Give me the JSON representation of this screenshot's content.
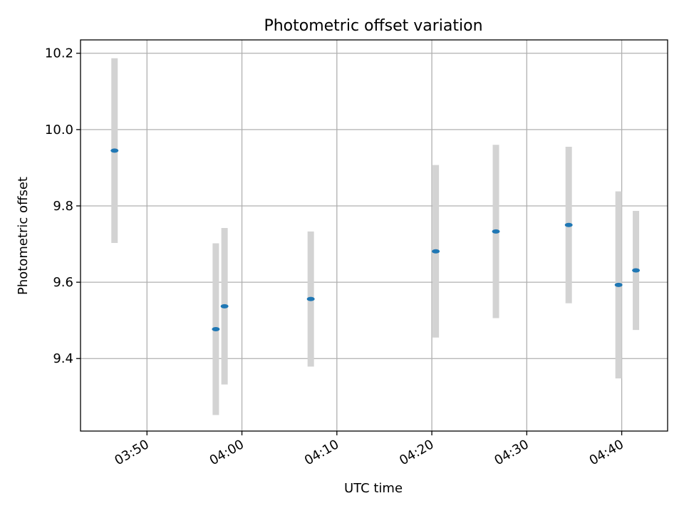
{
  "chart_data": {
    "type": "scatter",
    "title": "Photometric offset variation",
    "xlabel": "UTC time",
    "ylabel": "Photometric offset",
    "x_axis_format": "time HH:MM",
    "xlim": [
      "03:43:00",
      "04:44:50"
    ],
    "ylim": [
      9.21,
      10.235
    ],
    "xticks": [
      "03:50",
      "04:00",
      "04:10",
      "04:20",
      "04:30",
      "04:40"
    ],
    "yticks": [
      9.4,
      9.6,
      9.8,
      10.0,
      10.2
    ],
    "ytick_labels": [
      "9.4",
      "9.6",
      "9.8",
      "10.0",
      "10.2"
    ],
    "grid": true,
    "legend": "none",
    "colors": {
      "marker": "#1f77b4",
      "errorbar": "#d3d3d3",
      "grid": "#b0b0b0"
    },
    "points": [
      {
        "time": "03:46:35",
        "y": 9.945,
        "err": 0.242
      },
      {
        "time": "03:57:15",
        "y": 9.477,
        "err": 0.225
      },
      {
        "time": "03:58:10",
        "y": 9.537,
        "err": 0.205
      },
      {
        "time": "04:07:15",
        "y": 9.556,
        "err": 0.177
      },
      {
        "time": "04:20:25",
        "y": 9.681,
        "err": 0.226
      },
      {
        "time": "04:26:45",
        "y": 9.733,
        "err": 0.227
      },
      {
        "time": "04:34:25",
        "y": 9.75,
        "err": 0.205
      },
      {
        "time": "04:39:40",
        "y": 9.593,
        "err": 0.245
      },
      {
        "time": "04:41:30",
        "y": 9.631,
        "err": 0.156
      }
    ]
  }
}
